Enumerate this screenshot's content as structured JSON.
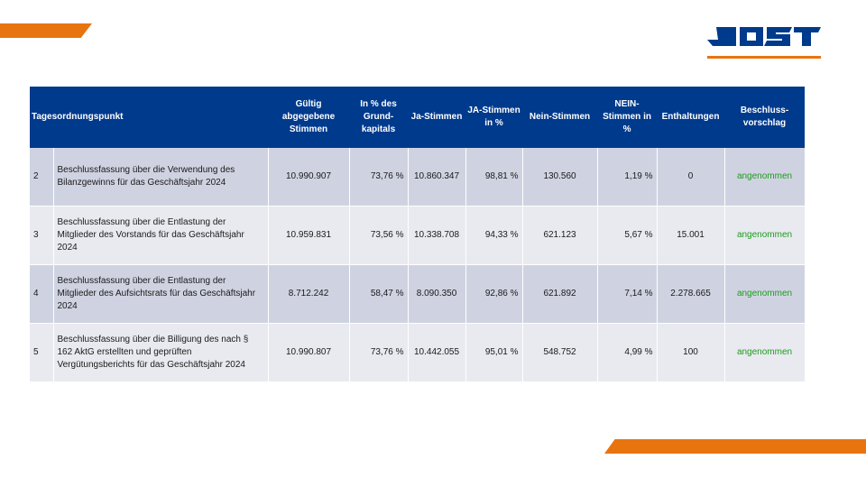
{
  "brand": {
    "logo_text": "JOST",
    "accent_color": "#e8740f",
    "header_color": "#003a8c",
    "status_color": "#1e9b1e"
  },
  "table": {
    "headers": [
      "Tagesordnungspunkt",
      "",
      "Gültig abgegebene Stimmen",
      "In % des Grund-kapitals",
      "Ja-Stimmen",
      "JA-Stimmen in %",
      "Nein-Stimmen",
      "NEIN-Stimmen in %",
      "Enthaltungen",
      "Beschluss-vorschlag"
    ],
    "rows": [
      {
        "nr": "2",
        "beschreibung": "Beschlussfassung über die Verwendung des Bilanzgewinns für das Geschäftsjahr 2024",
        "gueltig": "10.990.907",
        "grundkapital_pct": "73,76 %",
        "ja": "10.860.347",
        "ja_pct": "98,81 %",
        "nein": "130.560",
        "nein_pct": "1,19 %",
        "enthaltungen": "0",
        "status": "angenommen"
      },
      {
        "nr": "3",
        "beschreibung": "Beschlussfassung über die Entlastung der Mitglieder des Vorstands für das Geschäftsjahr 2024",
        "gueltig": "10.959.831",
        "grundkapital_pct": "73,56 %",
        "ja": "10.338.708",
        "ja_pct": "94,33 %",
        "nein": "621.123",
        "nein_pct": "5,67 %",
        "enthaltungen": "15.001",
        "status": "angenommen"
      },
      {
        "nr": "4",
        "beschreibung": "Beschlussfassung über die Entlastung der Mitglieder des Aufsichtsrats für das Geschäftsjahr 2024",
        "gueltig": "8.712.242",
        "grundkapital_pct": "58,47 %",
        "ja": "8.090.350",
        "ja_pct": "92,86 %",
        "nein": "621.892",
        "nein_pct": "7,14 %",
        "enthaltungen": "2.278.665",
        "status": "angenommen"
      },
      {
        "nr": "5",
        "beschreibung": "Beschlussfassung über die Billigung des nach § 162 AktG erstellten und geprüften Vergütungsberichts für das Geschäftsjahr 2024",
        "gueltig": "10.990.807",
        "grundkapital_pct": "73,76 %",
        "ja": "10.442.055",
        "ja_pct": "95,01 %",
        "nein": "548.752",
        "nein_pct": "4,99 %",
        "enthaltungen": "100",
        "status": "angenommen"
      }
    ]
  }
}
